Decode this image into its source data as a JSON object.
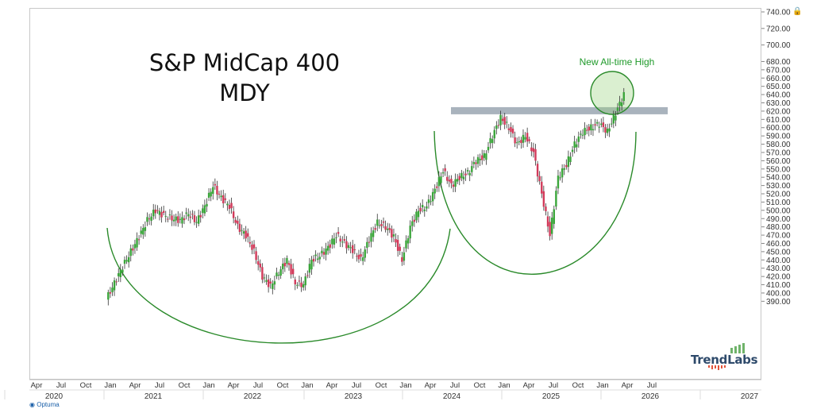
{
  "chart_data": {
    "type": "candlestick",
    "title": "S&P MidCap 400",
    "subtitle": "MDY",
    "annotation": "New All-time High",
    "ylim": [
      382,
      745
    ],
    "y_ticks": [
      "740.00",
      "720.00",
      "700.00",
      "680.00",
      "670.00",
      "660.00",
      "650.00",
      "640.00",
      "630.00",
      "620.00",
      "610.00",
      "600.00",
      "590.00",
      "580.00",
      "570.00",
      "560.00",
      "550.00",
      "540.00",
      "530.00",
      "520.00",
      "510.00",
      "500.00",
      "490.00",
      "480.00",
      "470.00",
      "460.00",
      "450.00",
      "440.00",
      "430.00",
      "420.00",
      "410.00",
      "400.00",
      "390.00"
    ],
    "x_month_ticks": [
      "Apr",
      "Jul",
      "Oct",
      "Jan",
      "Apr",
      "Jul",
      "Oct",
      "Jan",
      "Apr",
      "Jul",
      "Oct",
      "Jan",
      "Apr",
      "Jul",
      "Oct",
      "Jan",
      "Apr",
      "Jul",
      "Oct",
      "Jan",
      "Apr",
      "Jul",
      "Oct",
      "Jan",
      "Apr",
      "Jul"
    ],
    "x_year_ticks": [
      "2020",
      "2021",
      "2022",
      "2023",
      "2024",
      "2025",
      "2026",
      "2027"
    ],
    "resistance_level": 620,
    "series": [
      {
        "x": [
          "2020-10",
          "2020-11",
          "2020-12",
          "2021-01",
          "2021-02",
          "2021-03",
          "2021-04",
          "2021-05",
          "2021-06",
          "2021-07",
          "2021-08",
          "2021-09",
          "2021-10",
          "2021-11",
          "2021-12",
          "2022-01",
          "2022-02",
          "2022-03",
          "2022-04",
          "2022-05",
          "2022-06",
          "2022-07",
          "2022-08",
          "2022-09",
          "2022-10",
          "2022-11",
          "2022-12",
          "2023-01",
          "2023-02",
          "2023-03",
          "2023-04",
          "2023-05",
          "2023-06",
          "2023-07",
          "2023-08",
          "2023-09",
          "2023-10",
          "2023-11",
          "2023-12",
          "2024-01",
          "2024-02",
          "2024-03",
          "2024-04",
          "2024-05",
          "2024-06",
          "2024-07",
          "2024-08",
          "2024-09",
          "2024-10",
          "2024-11",
          "2024-12",
          "2025-01",
          "2025-02",
          "2025-03",
          "2025-04",
          "2025-05",
          "2025-06",
          "2025-07",
          "2025-08",
          "2025-09",
          "2025-10",
          "2025-11",
          "2025-12",
          "2026-01"
        ],
        "values": [
          392,
          412,
          432,
          450,
          468,
          488,
          500,
          494,
          490,
          488,
          496,
          486,
          505,
          530,
          515,
          505,
          480,
          470,
          450,
          420,
          408,
          425,
          440,
          412,
          410,
          440,
          445,
          455,
          470,
          460,
          452,
          440,
          465,
          485,
          480,
          468,
          440,
          480,
          500,
          505,
          525,
          548,
          530,
          540,
          545,
          560,
          565,
          590,
          612,
          600,
          580,
          590,
          570,
          520,
          470,
          540,
          555,
          580,
          595,
          600,
          605,
          595,
          618,
          640
        ]
      }
    ]
  },
  "branding": {
    "name": "TrendLabs",
    "footer": "Optuma"
  }
}
